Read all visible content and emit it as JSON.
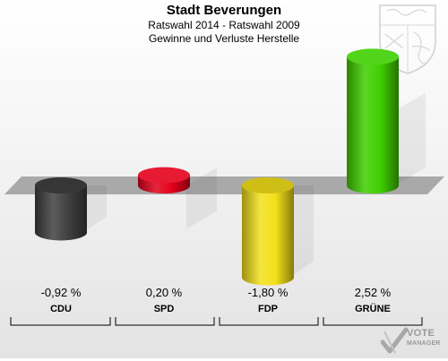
{
  "header": {
    "title": "Stadt Beverungen",
    "subtitle1": "Ratswahl 2014 - Ratswahl 2009",
    "subtitle2": "Gewinne und Verluste Herstelle"
  },
  "chart_data": {
    "type": "bar",
    "title": "Stadt Beverungen",
    "subtitle": [
      "Ratswahl 2014 - Ratswahl 2009",
      "Gewinne und Verluste Herstelle"
    ],
    "categories": [
      "CDU",
      "SPD",
      "FDP",
      "GRÜNE"
    ],
    "values": [
      -0.92,
      0.2,
      -1.8,
      2.52
    ],
    "value_labels": [
      "-0,92 %",
      "0,20 %",
      "-1,80 %",
      "2,52 %"
    ],
    "unit": "%",
    "colors": [
      "#3f3f3f",
      "#e3001b",
      "#f2e01a",
      "#3fcf00"
    ],
    "ylim": [
      -1.8,
      2.52
    ],
    "grid": false,
    "legend": "none"
  },
  "logo": {
    "line1": "VOTE",
    "line2": "MANAGER",
    "color": "#9a9a9a"
  }
}
